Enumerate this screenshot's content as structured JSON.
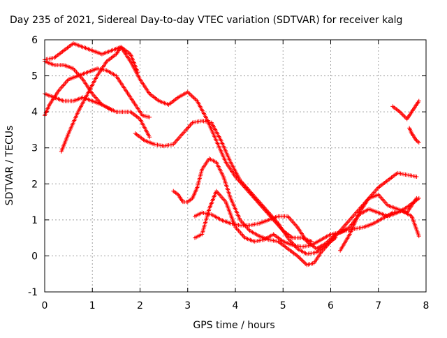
{
  "chart_data": {
    "type": "scatter",
    "title": "Day 235 of 2021, Sidereal Day-to-day VTEC variation (SDTVAR) for receiver kalg",
    "xlabel": "GPS time / hours",
    "ylabel": "SDTVAR / TECUs",
    "xlim": [
      0,
      8
    ],
    "ylim": [
      -1,
      6
    ],
    "x_ticks": [
      "0",
      "1",
      "2",
      "3",
      "4",
      "5",
      "6",
      "7",
      "8"
    ],
    "y_ticks": [
      "-1",
      "0",
      "1",
      "2",
      "3",
      "4",
      "5",
      "6"
    ],
    "grid": true,
    "marker": "+",
    "marker_color": "#ff0000",
    "series": [
      {
        "x": [
          0.0,
          0.2,
          0.4,
          0.6,
          0.8,
          1.0,
          1.2,
          1.4
        ],
        "y": [
          4.5,
          4.4,
          4.3,
          4.3,
          4.4,
          4.3,
          4.2,
          4.05
        ]
      },
      {
        "x": [
          0.0,
          0.2,
          0.4,
          0.6,
          0.8,
          1.0,
          1.2,
          1.5,
          1.8,
          2.0,
          2.2
        ],
        "y": [
          5.4,
          5.3,
          5.3,
          5.2,
          4.9,
          4.5,
          4.2,
          4.0,
          4.0,
          3.8,
          3.3
        ]
      },
      {
        "x": [
          0.0,
          0.1,
          0.3,
          0.5,
          0.7,
          0.9,
          1.1,
          1.3,
          1.5,
          1.7,
          1.9,
          2.05,
          2.2
        ],
        "y": [
          3.9,
          4.2,
          4.6,
          4.9,
          5.0,
          5.1,
          5.2,
          5.15,
          5.0,
          4.6,
          4.2,
          3.9,
          3.85
        ]
      },
      {
        "x": [
          0.0,
          0.2,
          0.4,
          0.6,
          0.8,
          1.0,
          1.2,
          1.4,
          1.6,
          1.8,
          2.0,
          2.2,
          2.4,
          2.6,
          2.8,
          3.0,
          3.2,
          3.4,
          3.6,
          3.8,
          4.0,
          4.2,
          4.4,
          4.6,
          4.8,
          5.0,
          5.2,
          5.4,
          5.6
        ],
        "y": [
          5.45,
          5.5,
          5.7,
          5.9,
          5.8,
          5.7,
          5.6,
          5.7,
          5.8,
          5.4,
          4.9,
          4.5,
          4.3,
          4.2,
          4.4,
          4.55,
          4.3,
          3.8,
          3.2,
          2.6,
          2.2,
          1.9,
          1.6,
          1.3,
          1.0,
          0.7,
          0.5,
          0.5,
          0.4
        ]
      },
      {
        "x": [
          0.35,
          0.5,
          0.7,
          0.9,
          1.1,
          1.3,
          1.5,
          1.6,
          1.8,
          1.95
        ],
        "y": [
          2.9,
          3.4,
          4.0,
          4.5,
          5.0,
          5.4,
          5.6,
          5.8,
          5.6,
          5.1
        ]
      },
      {
        "x": [
          1.9,
          2.1,
          2.3,
          2.5,
          2.7,
          2.9,
          3.1,
          3.3,
          3.5,
          3.7,
          3.9,
          4.1,
          4.3,
          4.5,
          4.7,
          4.9,
          5.1,
          5.3,
          5.5,
          5.7,
          5.9,
          6.1
        ],
        "y": [
          3.4,
          3.2,
          3.1,
          3.05,
          3.1,
          3.4,
          3.7,
          3.75,
          3.7,
          3.2,
          2.6,
          2.1,
          1.8,
          1.5,
          1.2,
          0.9,
          0.5,
          0.2,
          0.05,
          0.1,
          0.3,
          0.5
        ]
      },
      {
        "x": [
          2.7,
          2.8,
          2.9,
          3.0,
          3.1,
          3.2,
          3.3,
          3.45,
          3.6,
          3.75,
          3.9,
          4.1,
          4.3,
          4.5,
          4.7,
          4.9,
          5.1,
          5.3,
          5.5,
          5.65,
          5.8,
          6.0,
          6.2,
          6.4,
          6.6,
          6.8,
          7.0,
          7.2,
          7.4,
          7.6,
          7.8
        ],
        "y": [
          1.8,
          1.7,
          1.5,
          1.5,
          1.6,
          1.9,
          2.4,
          2.7,
          2.6,
          2.2,
          1.6,
          1.0,
          0.7,
          0.55,
          0.45,
          0.4,
          0.2,
          0.0,
          -0.25,
          -0.2,
          0.1,
          0.4,
          0.7,
          1.0,
          1.3,
          1.6,
          1.9,
          2.1,
          2.3,
          2.25,
          2.2
        ]
      },
      {
        "x": [
          3.15,
          3.3,
          3.5,
          3.7,
          3.9,
          4.1,
          4.3,
          4.5,
          4.7,
          4.9,
          5.1,
          5.3,
          5.5,
          5.7,
          5.9,
          6.1,
          6.3,
          6.5,
          6.7,
          6.9,
          7.1,
          7.3,
          7.5,
          7.7,
          7.85
        ],
        "y": [
          1.1,
          1.2,
          1.15,
          1.0,
          0.9,
          0.85,
          0.85,
          0.9,
          1.0,
          1.1,
          1.1,
          0.8,
          0.4,
          0.2,
          0.35,
          0.6,
          0.7,
          0.75,
          0.8,
          0.9,
          1.05,
          1.2,
          1.25,
          1.1,
          0.55
        ]
      },
      {
        "x": [
          3.15,
          3.3,
          3.45,
          3.6,
          3.8,
          4.0,
          4.2,
          4.4,
          4.6,
          4.8,
          5.0,
          5.2,
          5.4,
          5.6,
          5.8,
          6.0,
          6.2,
          6.4,
          6.6,
          6.8,
          7.0,
          7.2,
          7.4,
          7.6,
          7.85
        ],
        "y": [
          0.5,
          0.6,
          1.3,
          1.8,
          1.5,
          0.8,
          0.5,
          0.4,
          0.45,
          0.6,
          0.4,
          0.3,
          0.25,
          0.3,
          0.45,
          0.6,
          0.65,
          0.8,
          1.15,
          1.3,
          1.2,
          1.1,
          1.2,
          1.35,
          1.6
        ]
      },
      {
        "x": [
          6.2,
          6.4,
          6.6,
          6.8,
          7.0,
          7.2,
          7.4,
          7.6,
          7.8
        ],
        "y": [
          0.15,
          0.6,
          1.2,
          1.6,
          1.7,
          1.4,
          1.3,
          1.2,
          1.6
        ]
      },
      {
        "x": [
          7.3,
          7.45,
          7.6,
          7.7,
          7.8,
          7.85
        ],
        "y": [
          4.15,
          4.0,
          3.8,
          4.0,
          4.2,
          4.3
        ]
      },
      {
        "x": [
          7.65,
          7.7,
          7.75,
          7.8,
          7.85
        ],
        "y": [
          3.55,
          3.4,
          3.3,
          3.2,
          3.15
        ]
      }
    ]
  }
}
